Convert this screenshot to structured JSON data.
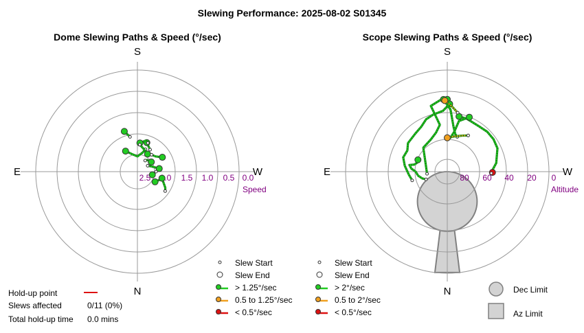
{
  "title": "Slewing Performance: 2025-08-02 S01345",
  "colors": {
    "green": "#22cc22",
    "green_dark": "#118811",
    "orange": "#f0a020",
    "red": "#dd1111",
    "purple": "#800080",
    "grid": "#999999",
    "limit_fill": "#d3d3d3",
    "limit_stroke": "#808080"
  },
  "chart_data": [
    {
      "type": "polar",
      "title": "Dome Slewing Paths & Speed (°/sec)",
      "compass": {
        "top": "S",
        "bottom": "N",
        "left": "E",
        "right": "W"
      },
      "radial_axis": {
        "label": "Speed",
        "ticks": [
          "2.5",
          "2.0",
          "1.5",
          "1.0",
          "0.5",
          "0.0"
        ],
        "range": [
          3.0,
          0.0
        ],
        "note": "speed increases toward the centre"
      },
      "slews": [
        {
          "speed_class": "fast",
          "points": [
            [
              162,
              1.75
            ],
            [
              168,
              1.95
            ]
          ]
        },
        {
          "speed_class": "fast",
          "points": [
            [
              150,
              2.3
            ],
            [
              162,
              2.45
            ],
            [
              180,
              2.55
            ],
            [
              195,
              2.42
            ],
            [
              200,
              2.3
            ]
          ]
        },
        {
          "speed_class": "fast",
          "points": [
            [
              198,
              2.1
            ],
            [
              205,
              2.2
            ],
            [
              210,
              2.25
            ]
          ]
        },
        {
          "speed_class": "fast",
          "points": [
            [
              185,
              2.15
            ],
            [
              195,
              2.05
            ],
            [
              200,
              2.1
            ]
          ]
        },
        {
          "speed_class": "fast",
          "points": [
            [
              210,
              2.4
            ],
            [
              195,
              2.3
            ],
            [
              185,
              2.2
            ]
          ]
        },
        {
          "speed_class": "fast",
          "points": [
            [
              240,
              2.15
            ],
            [
              230,
              2.3
            ],
            [
              220,
              2.35
            ]
          ]
        },
        {
          "speed_class": "fast",
          "points": [
            [
              262,
              2.35
            ],
            [
              250,
              2.55
            ],
            [
              240,
              2.65
            ]
          ]
        },
        {
          "speed_class": "fast",
          "points": [
            [
              235,
              2.5
            ],
            [
              220,
              2.55
            ],
            [
              215,
              2.6
            ]
          ]
        },
        {
          "speed_class": "fast",
          "points": [
            [
              282,
              2.55
            ],
            [
              275,
              2.5
            ],
            [
              270,
              2.45
            ]
          ]
        },
        {
          "speed_class": "fast",
          "points": [
            [
              300,
              2.4
            ],
            [
              290,
              2.3
            ],
            [
              283,
              2.25
            ]
          ]
        },
        {
          "speed_class": "fast",
          "points": [
            [
              285,
              2.25
            ],
            [
              300,
              2.05
            ],
            [
              305,
              2.0
            ]
          ]
        }
      ],
      "legend": [
        {
          "marker": "start",
          "label": "Slew Start"
        },
        {
          "marker": "end",
          "label": "Slew End"
        },
        {
          "marker": "fast",
          "label": "> 1.25°/sec"
        },
        {
          "marker": "medium",
          "label": "0.5 to 1.25°/sec"
        },
        {
          "marker": "slow",
          "label": "< 0.5°/sec"
        }
      ]
    },
    {
      "type": "polar",
      "title": "Scope Slewing Paths & Speed (°/sec)",
      "compass": {
        "top": "S",
        "bottom": "N",
        "left": "E",
        "right": "W"
      },
      "radial_axis": {
        "label": "Altitude",
        "ticks": [
          "80",
          "60",
          "40",
          "20",
          "0"
        ],
        "range": [
          90,
          0
        ]
      },
      "dec_limit": {
        "az": 0,
        "alt": 63.6,
        "angular_radius": 26.4
      },
      "az_limit": {
        "az_range": [
          -7,
          7
        ],
        "alt_range": [
          0,
          52
        ]
      },
      "slews": [
        {
          "speed_class": "fast",
          "points": [
            [
              180,
              26
            ],
            [
              175,
              26
            ],
            [
              166,
              30
            ],
            [
              171,
              48
            ],
            [
              164,
              54
            ],
            [
              153,
              58
            ],
            [
              135,
              60
            ],
            [
              108,
              70
            ],
            [
              84,
              72
            ]
          ]
        },
        {
          "speed_class": "fast",
          "points": [
            [
              182,
              30
            ],
            [
              176,
              36
            ],
            [
              166,
              38
            ],
            [
              158,
              40
            ],
            [
              150,
              44
            ],
            [
              140,
              46
            ],
            [
              126,
              47
            ],
            [
              118,
              50
            ],
            [
              108,
              49
            ],
            [
              98,
              52
            ],
            [
              85,
              56
            ],
            [
              76,
              58
            ]
          ]
        },
        {
          "speed_class": "fast",
          "points": [
            [
              112,
              62
            ],
            [
              106,
              62
            ],
            [
              102,
              60
            ],
            [
              100,
              56
            ],
            [
              95,
              58
            ],
            [
              90,
              62
            ],
            [
              82,
              64
            ],
            [
              75,
              67
            ],
            [
              70,
              70
            ]
          ]
        },
        {
          "speed_class": "fast",
          "points": [
            [
              192,
              40
            ],
            [
              200,
              40
            ],
            [
              215,
              41
            ],
            [
              225,
              40
            ],
            [
              235,
              40
            ],
            [
              245,
              41
            ],
            [
              260,
              46
            ],
            [
              268,
              50
            ],
            [
              272,
              50
            ]
          ]
        },
        {
          "speed_class": "fast",
          "points": [
            [
              202,
              38
            ],
            [
              193,
              44
            ],
            [
              190,
              54
            ],
            [
              185,
              60
            ],
            [
              180,
              60
            ]
          ]
        },
        {
          "speed_class": "fast",
          "points": [
            [
              177,
              26
            ],
            [
              183,
              35
            ],
            [
              188,
              50
            ],
            [
              192,
              56
            ],
            [
              196,
              58
            ]
          ]
        },
        {
          "speed_class": "medium",
          "points": [
            [
              178,
              27
            ],
            [
              184,
              32
            ],
            [
              190,
              37
            ]
          ]
        },
        {
          "speed_class": "medium",
          "points": [
            [
              180,
              60
            ],
            [
              192,
              58
            ],
            [
              204,
              55
            ],
            [
              210,
              53
            ]
          ]
        },
        {
          "speed_class": "slow",
          "points": [
            [
              271,
              50
            ],
            [
              272,
              51
            ]
          ]
        }
      ],
      "legend": [
        {
          "marker": "start",
          "label": "Slew Start"
        },
        {
          "marker": "end",
          "label": "Slew End"
        },
        {
          "marker": "fast",
          "label": "> 2°/sec"
        },
        {
          "marker": "medium",
          "label": "0.5 to 2°/sec"
        },
        {
          "marker": "slow",
          "label": "< 0.5°/sec"
        }
      ],
      "limit_legend": [
        {
          "marker": "dec",
          "label": "Dec Limit"
        },
        {
          "marker": "az",
          "label": "Az Limit"
        }
      ]
    }
  ],
  "holdup": {
    "rows": [
      {
        "label": "Hold-up point",
        "value": ""
      },
      {
        "label": "Slews affected",
        "value": "0/11 (0%)"
      },
      {
        "label": "Total hold-up time",
        "value": "0.0 mins"
      }
    ]
  }
}
